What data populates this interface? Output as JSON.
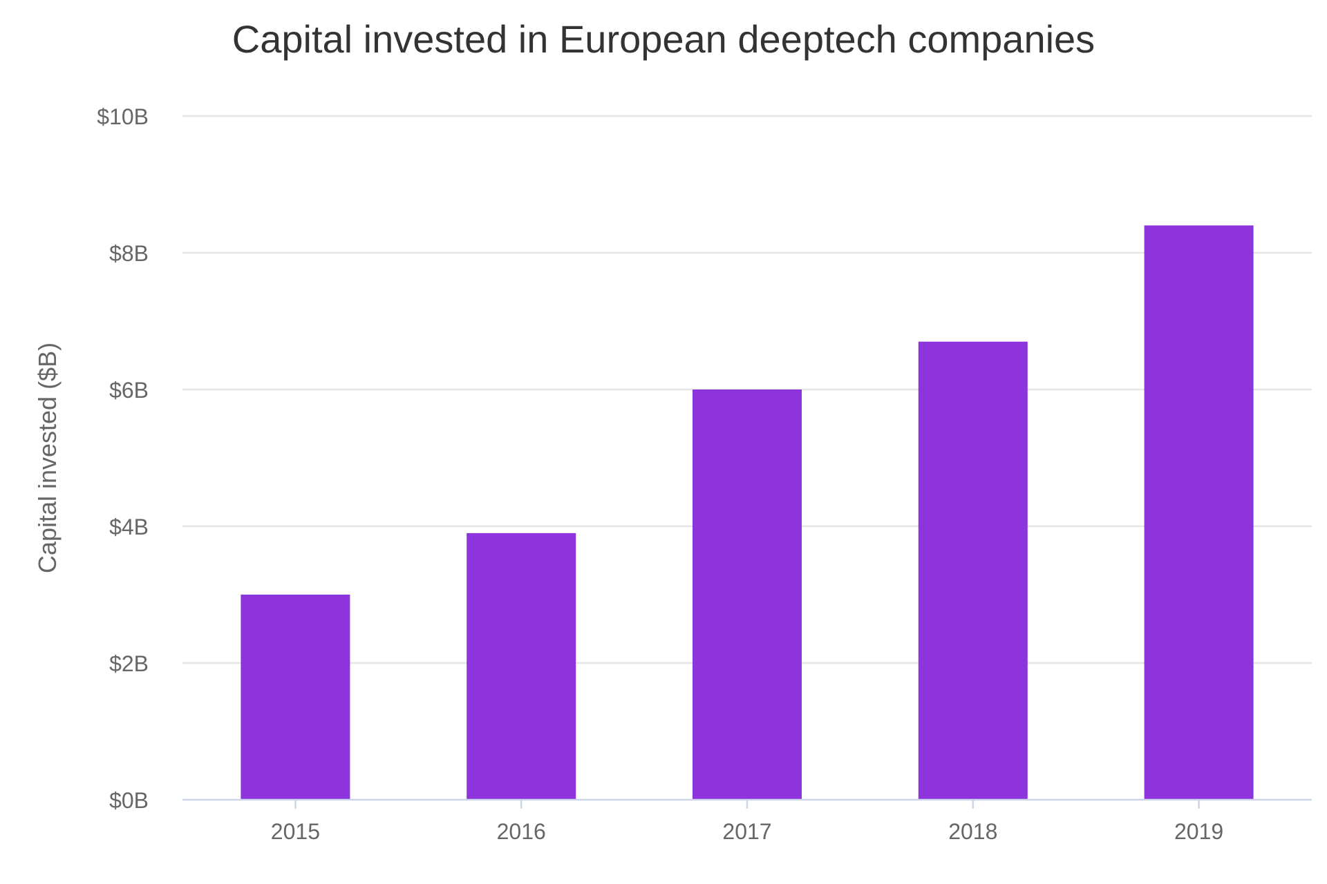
{
  "chart_data": {
    "type": "bar",
    "title": "Capital invested in European deeptech companies",
    "xlabel": "",
    "ylabel": "Capital invested ($B)",
    "categories": [
      "2015",
      "2016",
      "2017",
      "2018",
      "2019"
    ],
    "values": [
      3.0,
      3.9,
      6.0,
      6.7,
      8.4
    ],
    "ylim": [
      0,
      10
    ],
    "yticks": [
      0,
      2,
      4,
      6,
      8,
      10
    ],
    "ytick_labels": [
      "$0B",
      "$2B",
      "$4B",
      "$6B",
      "$8B",
      "$10B"
    ],
    "grid": true,
    "legend": "none",
    "bar_color": "#8d34dd"
  }
}
